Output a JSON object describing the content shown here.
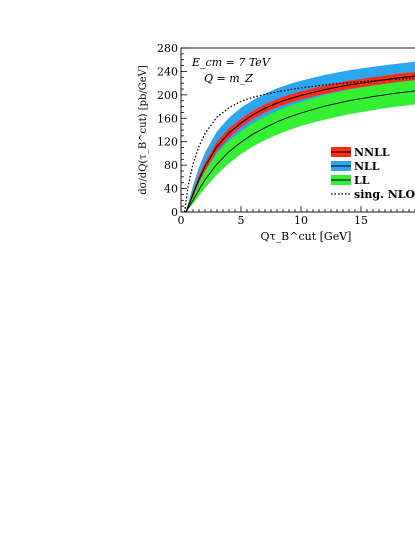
{
  "chart_data": {
    "type": "line",
    "annotations": {
      "energy": "E_cm = 7 TeV",
      "scale": "Q = m_Z"
    },
    "xlabel": "Qτ_B^cut [GeV]",
    "ylabel": "dσ/dQ(τ_B^cut) [pb/GeV]",
    "xlim": [
      0,
      20
    ],
    "ylim": [
      0,
      280
    ],
    "x_ticks": [
      0,
      5,
      10,
      15
    ],
    "y_ticks": [
      0,
      40,
      80,
      120,
      160,
      200,
      240,
      280
    ],
    "grid": false,
    "legend_position": "right",
    "series": [
      {
        "name": "NNLL",
        "color": "#ff2a1a",
        "x": [
          0.4,
          1,
          1.5,
          2,
          3,
          4,
          5,
          6,
          7,
          8,
          9,
          10,
          12,
          14,
          16,
          18,
          20
        ],
        "center": [
          0,
          30,
          56,
          78,
          112,
          135,
          152,
          166,
          177,
          186,
          193,
          199,
          209,
          217,
          223,
          229,
          233
        ],
        "band_low": [
          0,
          25,
          50,
          70,
          104,
          127,
          145,
          159,
          170,
          179,
          186,
          192,
          202,
          210,
          216,
          222,
          226
        ],
        "band_high": [
          0,
          35,
          62,
          85,
          120,
          143,
          159,
          173,
          184,
          193,
          200,
          206,
          216,
          224,
          230,
          236,
          240
        ]
      },
      {
        "name": "NLL",
        "color": "#2aa7ee",
        "x": [
          0.4,
          1,
          1.5,
          2,
          3,
          4,
          5,
          6,
          7,
          8,
          9,
          10,
          12,
          14,
          16,
          18,
          20
        ],
        "center": [
          0,
          30,
          56,
          78,
          112,
          135,
          152,
          166,
          177,
          186,
          193,
          199,
          209,
          217,
          223,
          229,
          233
        ],
        "band_low": [
          0,
          18,
          38,
          57,
          88,
          110,
          127,
          141,
          152,
          161,
          169,
          176,
          186,
          195,
          202,
          208,
          213
        ],
        "band_high": [
          0,
          45,
          76,
          101,
          138,
          161,
          178,
          191,
          202,
          211,
          218,
          224,
          234,
          242,
          248,
          253,
          258
        ]
      },
      {
        "name": "LL",
        "color": "#33f033",
        "x": [
          0.4,
          1,
          1.5,
          2,
          3,
          4,
          5,
          6,
          7,
          8,
          9,
          10,
          12,
          14,
          16,
          18,
          20
        ],
        "center": [
          0,
          20,
          38,
          55,
          82,
          103,
          119,
          133,
          144,
          154,
          162,
          169,
          181,
          190,
          197,
          203,
          208
        ],
        "band_low": [
          0,
          14,
          28,
          41,
          64,
          83,
          99,
          112,
          123,
          132,
          140,
          147,
          158,
          167,
          174,
          180,
          185
        ],
        "band_high": [
          0,
          27,
          49,
          70,
          100,
          122,
          138,
          152,
          163,
          173,
          181,
          188,
          200,
          209,
          216,
          222,
          227
        ]
      },
      {
        "name": "sing. NLO",
        "color": "#000000",
        "style": "dotted",
        "x": [
          0.3,
          0.6,
          1,
          1.5,
          2,
          3,
          4,
          5,
          6,
          7,
          8,
          10,
          12,
          14,
          16,
          18,
          20
        ],
        "values": [
          0,
          45,
          82,
          112,
          134,
          162,
          178,
          189,
          196,
          201,
          205,
          212,
          217,
          221,
          224,
          227,
          229
        ]
      }
    ]
  }
}
